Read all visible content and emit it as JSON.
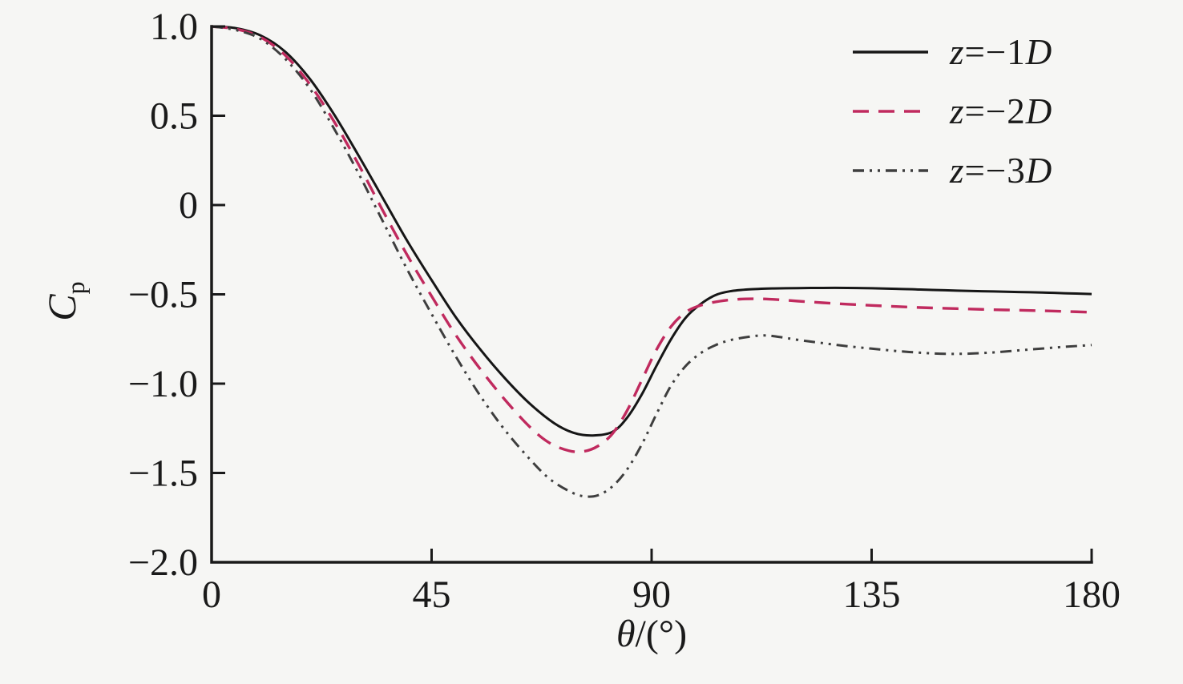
{
  "figure": {
    "background": "#f6f6f4",
    "axis_color": "#1a1a1a",
    "text_color": "#1a1a1a"
  },
  "chart_data": {
    "type": "line",
    "title": "",
    "xlabel": "θ/(°)",
    "ylabel": {
      "base": "C",
      "sub": "p"
    },
    "x_range": [
      0,
      180
    ],
    "y_range": [
      -2.0,
      1.0
    ],
    "grid": false,
    "legend_position": "top-right",
    "x_ticks": [
      {
        "value": 0,
        "label": "0"
      },
      {
        "value": 45,
        "label": "45"
      },
      {
        "value": 90,
        "label": "90"
      },
      {
        "value": 135,
        "label": "135"
      },
      {
        "value": 180,
        "label": "180"
      }
    ],
    "y_ticks": [
      {
        "value": 1.0,
        "label": "1.0"
      },
      {
        "value": 0.5,
        "label": "0.5"
      },
      {
        "value": 0,
        "label": "0"
      },
      {
        "value": -0.5,
        "label": "−0.5"
      },
      {
        "value": -1.0,
        "label": "−1.0"
      },
      {
        "value": -1.5,
        "label": "−1.5"
      },
      {
        "value": -2.0,
        "label": "−2.0"
      }
    ],
    "series": [
      {
        "label": "z=−1D",
        "color": "#161616",
        "dash": "",
        "width": 3,
        "points": [
          [
            0,
            1.0
          ],
          [
            5,
            0.99
          ],
          [
            10,
            0.95
          ],
          [
            15,
            0.86
          ],
          [
            20,
            0.71
          ],
          [
            25,
            0.51
          ],
          [
            30,
            0.28
          ],
          [
            35,
            0.04
          ],
          [
            40,
            -0.2
          ],
          [
            45,
            -0.42
          ],
          [
            50,
            -0.63
          ],
          [
            55,
            -0.81
          ],
          [
            60,
            -0.97
          ],
          [
            65,
            -1.11
          ],
          [
            70,
            -1.22
          ],
          [
            74,
            -1.275
          ],
          [
            78,
            -1.29
          ],
          [
            82,
            -1.27
          ],
          [
            85,
            -1.19
          ],
          [
            88,
            -1.06
          ],
          [
            91,
            -0.9
          ],
          [
            94,
            -0.75
          ],
          [
            97,
            -0.63
          ],
          [
            100,
            -0.555
          ],
          [
            103,
            -0.505
          ],
          [
            106,
            -0.483
          ],
          [
            110,
            -0.472
          ],
          [
            115,
            -0.467
          ],
          [
            120,
            -0.465
          ],
          [
            125,
            -0.464
          ],
          [
            130,
            -0.464
          ],
          [
            135,
            -0.466
          ],
          [
            140,
            -0.469
          ],
          [
            145,
            -0.473
          ],
          [
            150,
            -0.477
          ],
          [
            155,
            -0.481
          ],
          [
            160,
            -0.484
          ],
          [
            165,
            -0.487
          ],
          [
            170,
            -0.49
          ],
          [
            175,
            -0.494
          ],
          [
            180,
            -0.498
          ]
        ]
      },
      {
        "label": "z=−2D",
        "color": "#c02a5e",
        "dash": "20 12",
        "width": 3.4,
        "points": [
          [
            0,
            1.0
          ],
          [
            5,
            0.985
          ],
          [
            10,
            0.94
          ],
          [
            15,
            0.84
          ],
          [
            20,
            0.68
          ],
          [
            25,
            0.47
          ],
          [
            30,
            0.23
          ],
          [
            35,
            -0.03
          ],
          [
            40,
            -0.28
          ],
          [
            45,
            -0.51
          ],
          [
            50,
            -0.73
          ],
          [
            55,
            -0.92
          ],
          [
            60,
            -1.09
          ],
          [
            65,
            -1.24
          ],
          [
            69,
            -1.33
          ],
          [
            73,
            -1.375
          ],
          [
            76,
            -1.38
          ],
          [
            79,
            -1.35
          ],
          [
            82,
            -1.28
          ],
          [
            85,
            -1.15
          ],
          [
            88,
            -0.98
          ],
          [
            91,
            -0.81
          ],
          [
            94,
            -0.68
          ],
          [
            97,
            -0.6
          ],
          [
            100,
            -0.562
          ],
          [
            104,
            -0.538
          ],
          [
            108,
            -0.527
          ],
          [
            112,
            -0.525
          ],
          [
            116,
            -0.53
          ],
          [
            120,
            -0.538
          ],
          [
            125,
            -0.547
          ],
          [
            130,
            -0.555
          ],
          [
            135,
            -0.562
          ],
          [
            140,
            -0.568
          ],
          [
            145,
            -0.574
          ],
          [
            150,
            -0.578
          ],
          [
            155,
            -0.582
          ],
          [
            160,
            -0.586
          ],
          [
            165,
            -0.589
          ],
          [
            170,
            -0.592
          ],
          [
            175,
            -0.596
          ],
          [
            180,
            -0.6
          ]
        ]
      },
      {
        "label": "z=−3D",
        "color": "#3e3e3e",
        "dash": "14 7 3 7 3 7",
        "width": 3,
        "points": [
          [
            0,
            1.0
          ],
          [
            5,
            0.98
          ],
          [
            10,
            0.93
          ],
          [
            15,
            0.82
          ],
          [
            20,
            0.655
          ],
          [
            25,
            0.43
          ],
          [
            30,
            0.18
          ],
          [
            35,
            -0.09
          ],
          [
            40,
            -0.36
          ],
          [
            45,
            -0.61
          ],
          [
            50,
            -0.85
          ],
          [
            55,
            -1.07
          ],
          [
            60,
            -1.26
          ],
          [
            65,
            -1.42
          ],
          [
            69,
            -1.53
          ],
          [
            73,
            -1.6
          ],
          [
            76,
            -1.63
          ],
          [
            79,
            -1.625
          ],
          [
            82,
            -1.575
          ],
          [
            85,
            -1.48
          ],
          [
            88,
            -1.34
          ],
          [
            91,
            -1.17
          ],
          [
            94,
            -1.01
          ],
          [
            97,
            -0.9
          ],
          [
            100,
            -0.83
          ],
          [
            103,
            -0.785
          ],
          [
            106,
            -0.757
          ],
          [
            110,
            -0.737
          ],
          [
            113,
            -0.73
          ],
          [
            116,
            -0.738
          ],
          [
            120,
            -0.755
          ],
          [
            125,
            -0.773
          ],
          [
            130,
            -0.79
          ],
          [
            135,
            -0.804
          ],
          [
            140,
            -0.817
          ],
          [
            145,
            -0.827
          ],
          [
            150,
            -0.833
          ],
          [
            155,
            -0.832
          ],
          [
            160,
            -0.825
          ],
          [
            165,
            -0.814
          ],
          [
            170,
            -0.803
          ],
          [
            175,
            -0.793
          ],
          [
            180,
            -0.784
          ]
        ]
      }
    ]
  }
}
